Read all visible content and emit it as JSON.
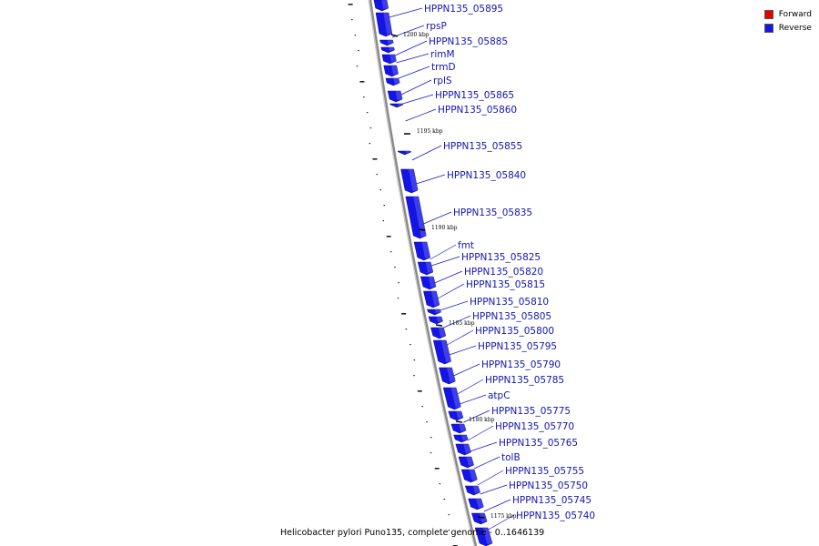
{
  "legend": {
    "forward": {
      "label": "Forward",
      "color": "#e60000"
    },
    "reverse": {
      "label": "Reverse",
      "color": "#1414e6"
    }
  },
  "caption": "Helicobacter pylori Puno135, complete genome - 0..1646139",
  "ticks": [
    "1200 kbp",
    "1195 kbp",
    "1190 kbp",
    "1185 kbp",
    "1180 kbp",
    "1175 kbp"
  ],
  "genes": [
    "HPPN135_05895",
    "rpsP",
    "HPPN135_05885",
    "rimM",
    "trmD",
    "rplS",
    "HPPN135_05865",
    "HPPN135_05860",
    "HPPN135_05855",
    "HPPN135_05840",
    "HPPN135_05835",
    "fmt",
    "HPPN135_05825",
    "HPPN135_05820",
    "HPPN135_05815",
    "HPPN135_05810",
    "HPPN135_05805",
    "HPPN135_05800",
    "HPPN135_05795",
    "HPPN135_05790",
    "HPPN135_05785",
    "atpC",
    "HPPN135_05775",
    "HPPN135_05770",
    "HPPN135_05765",
    "tolB",
    "HPPN135_05755",
    "HPPN135_05750",
    "HPPN135_05745",
    "HPPN135_05740"
  ]
}
